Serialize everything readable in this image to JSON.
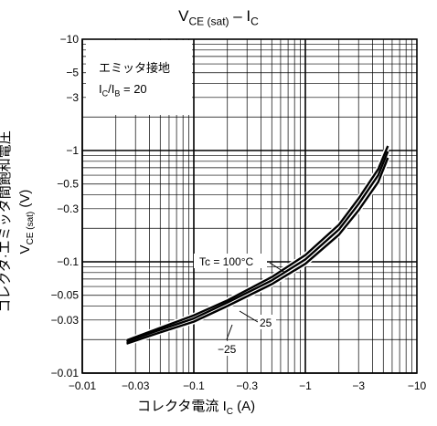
{
  "title": {
    "main": "V",
    "sub": "CE (sat)",
    "dash": " – I",
    "sub2": "C"
  },
  "ylabel": {
    "line1": "コレクタ·エミッタ間飽和電圧",
    "line2_main": "V",
    "line2_sub": "CE (sat)",
    "line2_unit": "  (V)"
  },
  "xlabel": {
    "main": "コレクタ電流   I",
    "sub": "C",
    "unit": "   (A)"
  },
  "info": {
    "line1": "エミッタ接地",
    "line2_main": "I",
    "line2_sub1": "C",
    "line2_mid": "/I",
    "line2_sub2": "B",
    "line2_end": " = 20"
  },
  "chart_data": {
    "type": "line",
    "xscale": "log",
    "yscale": "log",
    "xlim": [
      -0.01,
      -10
    ],
    "ylim": [
      -0.01,
      -10
    ],
    "xticks": [
      "−0.01",
      "−0.03",
      "−0.1",
      "−0.3",
      "−1",
      "−3",
      "−10"
    ],
    "yticks": [
      "−10",
      "−5",
      "−3",
      "−1",
      "−0.5",
      "−0.3",
      "−0.1",
      "−0.05",
      "−0.03",
      "−0.01"
    ],
    "grid": true,
    "series": [
      {
        "name": "Tc = 100°C",
        "x": [
          -0.025,
          -0.05,
          -0.1,
          -0.2,
          -0.5,
          -1,
          -2,
          -3,
          -4.5,
          -5.5
        ],
        "y": [
          -0.0197,
          -0.0255,
          -0.033,
          -0.045,
          -0.073,
          -0.115,
          -0.215,
          -0.37,
          -0.68,
          -1.1
        ]
      },
      {
        "name": "25",
        "x": [
          -0.025,
          -0.05,
          -0.1,
          -0.2,
          -0.5,
          -1,
          -2,
          -3,
          -4.5,
          -5.5
        ],
        "y": [
          -0.0192,
          -0.0245,
          -0.031,
          -0.043,
          -0.068,
          -0.105,
          -0.195,
          -0.33,
          -0.6,
          -0.98
        ]
      },
      {
        "name": "−25",
        "x": [
          -0.025,
          -0.05,
          -0.1,
          -0.2,
          -0.5,
          -1,
          -2,
          -3,
          -4.5,
          -5.5
        ],
        "y": [
          -0.0184,
          -0.0232,
          -0.029,
          -0.04,
          -0.063,
          -0.096,
          -0.175,
          -0.29,
          -0.52,
          -0.86
        ]
      }
    ],
    "annotations": [
      "Tc = 100°C",
      "25",
      "−25"
    ]
  }
}
